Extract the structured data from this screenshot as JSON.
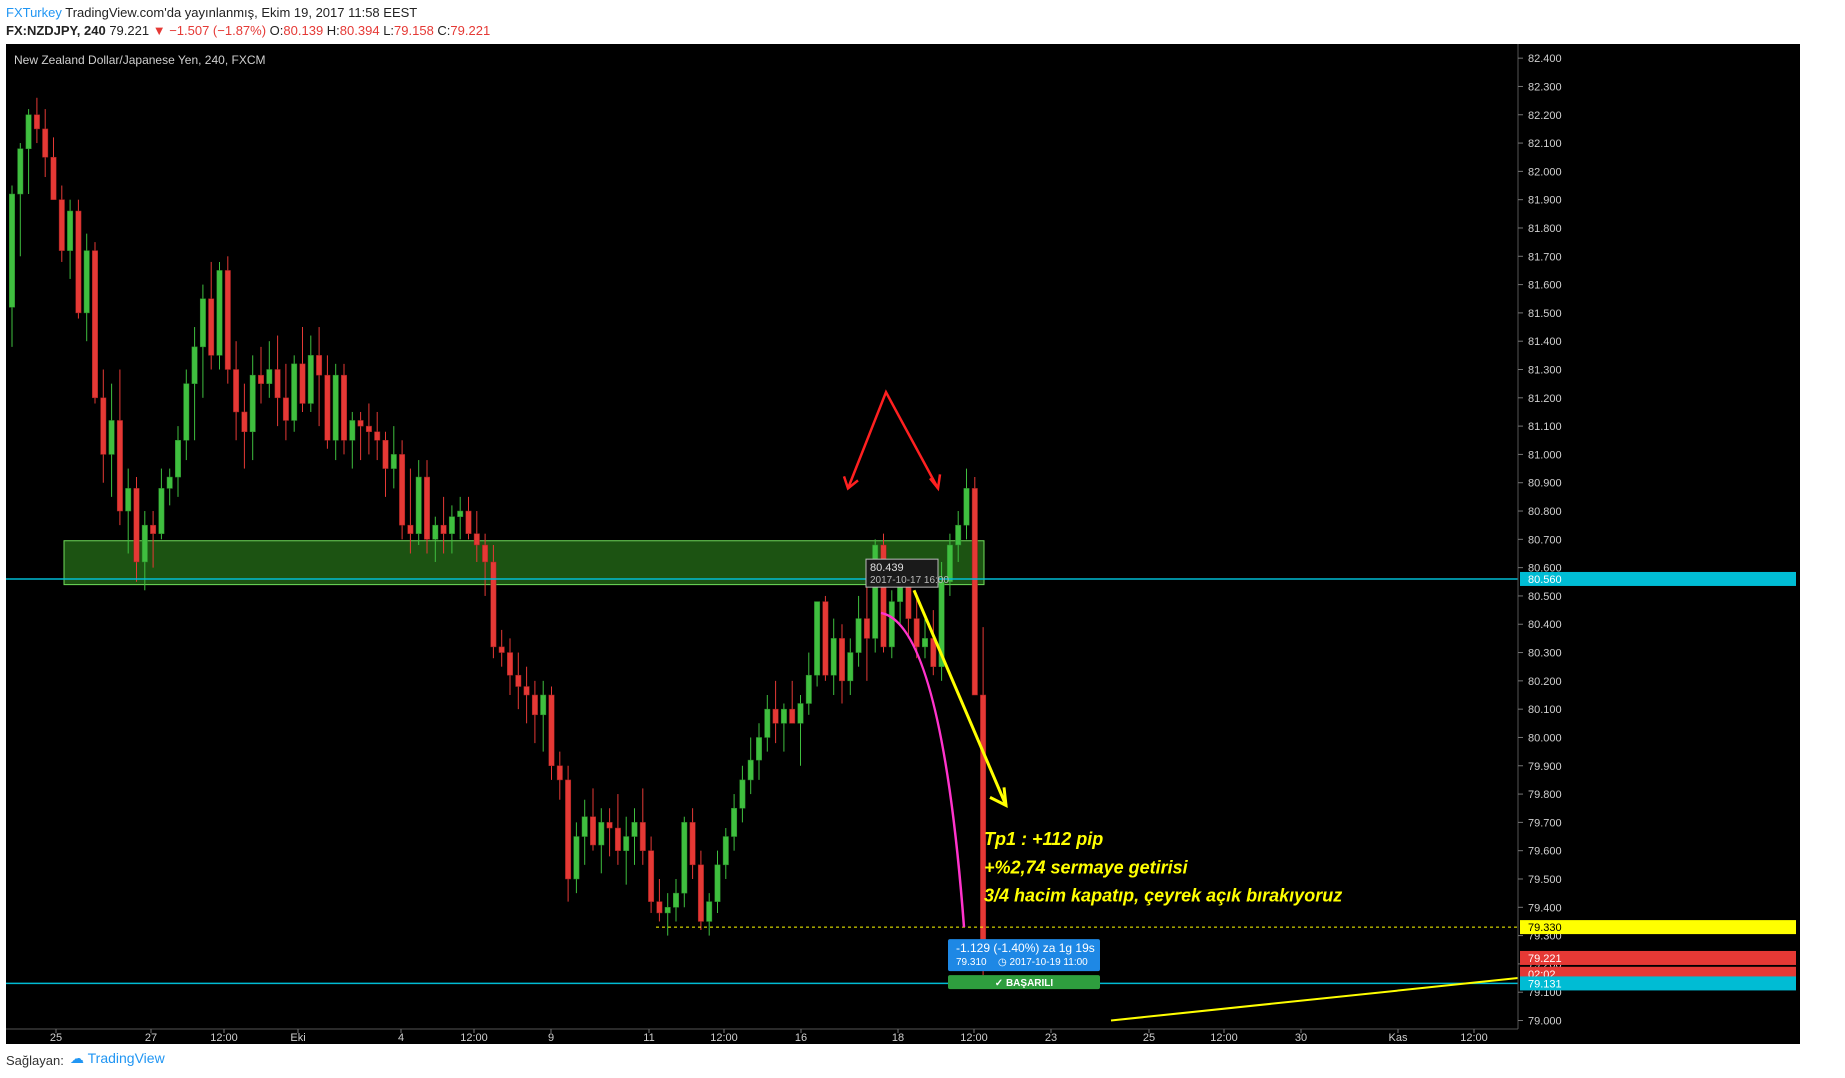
{
  "header": {
    "author": "FXTurkey",
    "published": "TradingView.com'da yayınlanmış, Ekim 19, 2017 11:58 EEST",
    "symbol": "FX:NZDJPY, 240",
    "last": "79.221",
    "change": "▼ −1.507 (−1.87%)",
    "o_label": "O:",
    "o_value": "80.139",
    "h_label": "H:",
    "h_value": "80.394",
    "l_label": "L:",
    "l_value": "79.158",
    "c_label": "C:",
    "c_value": "79.221"
  },
  "footer": {
    "source_label": "Sağlayan:",
    "provider": "TradingView"
  },
  "colors": {
    "background": "#000000",
    "up": "#3fbf3f",
    "down": "#e53935",
    "zone": "#2e8b1e",
    "level_line": "#00bcd4",
    "arrow_red": "#ff2020",
    "arrow_yellow": "#ffff00",
    "magenta": "#ff33cc",
    "target_box": "#1e88e5",
    "success": "#2e9e3e"
  },
  "chart_data": {
    "type": "candlestick",
    "title": "New Zealand Dollar/Japanese Yen, 240, FXCM",
    "ylim": [
      78.97,
      82.45
    ],
    "y_ticks": [
      "82.400",
      "82.300",
      "82.200",
      "82.100",
      "82.000",
      "81.900",
      "81.800",
      "81.700",
      "81.600",
      "81.500",
      "81.400",
      "81.300",
      "81.200",
      "81.100",
      "81.000",
      "80.900",
      "80.800",
      "80.700",
      "80.600",
      "80.500",
      "80.400",
      "80.300",
      "80.200",
      "80.100",
      "80.000",
      "79.900",
      "79.800",
      "79.700",
      "79.600",
      "79.500",
      "79.400",
      "79.300",
      "79.200",
      "79.100",
      "79.000"
    ],
    "x_ticks": [
      "25",
      "27",
      "12:00",
      "Eki",
      "4",
      "12:00",
      "9",
      "11",
      "12:00",
      "16",
      "18",
      "12:00",
      "23",
      "25",
      "12:00",
      "30",
      "Kas",
      "12:00"
    ],
    "price_labels": [
      {
        "text": "80.560",
        "value": 80.56,
        "color": "#00bcd4"
      },
      {
        "text": "79.330",
        "value": 79.33,
        "color": "#ffff00"
      },
      {
        "text": "79.221",
        "value": 79.221,
        "color": "#e53935"
      },
      {
        "text": "02:02",
        "value": 79.165,
        "color": "#e53935"
      },
      {
        "text": "79.131",
        "value": 79.131,
        "color": "#00bcd4"
      }
    ],
    "horizontal_levels": [
      80.56,
      79.131
    ],
    "zone": {
      "from": 80.54,
      "to": 80.695
    },
    "target_line": 79.33,
    "tooltip": {
      "price": "80.439",
      "date": "2017-10-17 16:00"
    },
    "target_box": {
      "line1": "-1.129 (-1.40%) za 1g 19s",
      "price": "79.310",
      "date": "2017-10-19  11:00"
    },
    "status": "BAŞARILI",
    "annotations": [
      "Tp1 : +112 pip",
      "+%2,74 sermaye getirisi",
      "3/4 hacim kapatıp, çeyrek açık bırakıyoruz"
    ],
    "candles": [
      [
        81.52,
        81.95,
        81.38,
        81.92
      ],
      [
        81.92,
        82.1,
        81.7,
        82.08
      ],
      [
        82.08,
        82.22,
        81.92,
        82.2
      ],
      [
        82.2,
        82.26,
        82.1,
        82.15
      ],
      [
        82.15,
        82.22,
        81.98,
        82.05
      ],
      [
        82.05,
        82.12,
        81.9,
        81.9
      ],
      [
        81.9,
        81.95,
        81.68,
        81.72
      ],
      [
        81.72,
        81.9,
        81.62,
        81.86
      ],
      [
        81.86,
        81.9,
        81.48,
        81.5
      ],
      [
        81.5,
        81.78,
        81.4,
        81.72
      ],
      [
        81.72,
        81.75,
        81.18,
        81.2
      ],
      [
        81.2,
        81.3,
        80.9,
        81.0
      ],
      [
        81.0,
        81.25,
        80.85,
        81.12
      ],
      [
        81.12,
        81.3,
        80.75,
        80.8
      ],
      [
        80.8,
        80.95,
        80.65,
        80.88
      ],
      [
        80.88,
        80.92,
        80.55,
        80.62
      ],
      [
        80.62,
        80.8,
        80.52,
        80.75
      ],
      [
        80.75,
        80.8,
        80.6,
        80.72
      ],
      [
        80.72,
        80.95,
        80.7,
        80.88
      ],
      [
        80.88,
        80.95,
        80.82,
        80.92
      ],
      [
        80.92,
        81.1,
        80.85,
        81.05
      ],
      [
        81.05,
        81.3,
        80.98,
        81.25
      ],
      [
        81.25,
        81.45,
        81.05,
        81.38
      ],
      [
        81.38,
        81.6,
        81.2,
        81.55
      ],
      [
        81.55,
        81.68,
        81.3,
        81.35
      ],
      [
        81.35,
        81.68,
        81.3,
        81.65
      ],
      [
        81.65,
        81.7,
        81.25,
        81.3
      ],
      [
        81.3,
        81.4,
        81.05,
        81.15
      ],
      [
        81.15,
        81.25,
        80.95,
        81.08
      ],
      [
        81.08,
        81.35,
        80.98,
        81.28
      ],
      [
        81.28,
        81.38,
        81.18,
        81.25
      ],
      [
        81.25,
        81.4,
        81.2,
        81.3
      ],
      [
        81.3,
        81.42,
        81.1,
        81.2
      ],
      [
        81.2,
        81.32,
        81.05,
        81.12
      ],
      [
        81.12,
        81.35,
        81.08,
        81.32
      ],
      [
        81.32,
        81.45,
        81.15,
        81.18
      ],
      [
        81.18,
        81.42,
        81.15,
        81.35
      ],
      [
        81.35,
        81.45,
        81.1,
        81.28
      ],
      [
        81.28,
        81.35,
        81.02,
        81.05
      ],
      [
        81.05,
        81.32,
        80.98,
        81.28
      ],
      [
        81.28,
        81.32,
        81.0,
        81.05
      ],
      [
        81.05,
        81.15,
        80.95,
        81.12
      ],
      [
        81.12,
        81.15,
        80.98,
        81.1
      ],
      [
        81.1,
        81.18,
        81.0,
        81.08
      ],
      [
        81.08,
        81.15,
        80.98,
        81.05
      ],
      [
        81.05,
        81.08,
        80.85,
        80.95
      ],
      [
        80.95,
        81.1,
        80.88,
        81.0
      ],
      [
        81.0,
        81.05,
        80.7,
        80.75
      ],
      [
        80.75,
        80.95,
        80.65,
        80.72
      ],
      [
        80.72,
        80.98,
        80.68,
        80.92
      ],
      [
        80.92,
        80.98,
        80.65,
        80.7
      ],
      [
        80.7,
        80.78,
        80.62,
        80.75
      ],
      [
        80.75,
        80.85,
        80.65,
        80.72
      ],
      [
        80.72,
        80.82,
        80.65,
        80.78
      ],
      [
        80.78,
        80.85,
        80.7,
        80.8
      ],
      [
        80.8,
        80.85,
        80.7,
        80.72
      ],
      [
        80.72,
        80.8,
        80.62,
        80.68
      ],
      [
        80.68,
        80.72,
        80.5,
        80.62
      ],
      [
        80.62,
        80.68,
        80.28,
        80.32
      ],
      [
        80.32,
        80.38,
        80.25,
        80.3
      ],
      [
        80.3,
        80.35,
        80.15,
        80.22
      ],
      [
        80.22,
        80.3,
        80.1,
        80.18
      ],
      [
        80.18,
        80.25,
        80.05,
        80.15
      ],
      [
        80.15,
        80.2,
        79.98,
        80.08
      ],
      [
        80.08,
        80.2,
        79.95,
        80.15
      ],
      [
        80.15,
        80.18,
        79.85,
        79.9
      ],
      [
        79.9,
        79.95,
        79.78,
        79.85
      ],
      [
        79.85,
        79.9,
        79.42,
        79.5
      ],
      [
        79.5,
        79.7,
        79.45,
        79.65
      ],
      [
        79.65,
        79.78,
        79.55,
        79.72
      ],
      [
        79.72,
        79.82,
        79.6,
        79.62
      ],
      [
        79.62,
        79.75,
        79.52,
        79.7
      ],
      [
        79.7,
        79.75,
        79.58,
        79.68
      ],
      [
        79.68,
        79.8,
        79.55,
        79.6
      ],
      [
        79.6,
        79.72,
        79.48,
        79.65
      ],
      [
        79.65,
        79.75,
        79.55,
        79.7
      ],
      [
        79.7,
        79.82,
        79.55,
        79.6
      ],
      [
        79.6,
        79.65,
        79.38,
        79.42
      ],
      [
        79.42,
        79.5,
        79.35,
        79.38
      ],
      [
        79.38,
        79.45,
        79.3,
        79.4
      ],
      [
        79.4,
        79.5,
        79.35,
        79.45
      ],
      [
        79.45,
        79.72,
        79.4,
        79.7
      ],
      [
        79.7,
        79.75,
        79.5,
        79.55
      ],
      [
        79.55,
        79.6,
        79.32,
        79.35
      ],
      [
        79.35,
        79.45,
        79.3,
        79.42
      ],
      [
        79.42,
        79.6,
        79.38,
        79.55
      ],
      [
        79.55,
        79.68,
        79.5,
        79.65
      ],
      [
        79.65,
        79.8,
        79.6,
        79.75
      ],
      [
        79.75,
        79.9,
        79.7,
        79.85
      ],
      [
        79.85,
        80.0,
        79.8,
        79.92
      ],
      [
        79.92,
        80.05,
        79.85,
        80.0
      ],
      [
        80.0,
        80.15,
        79.95,
        80.1
      ],
      [
        80.1,
        80.2,
        79.98,
        80.05
      ],
      [
        80.05,
        80.12,
        79.95,
        80.1
      ],
      [
        80.1,
        80.2,
        80.05,
        80.05
      ],
      [
        80.05,
        80.15,
        79.9,
        80.12
      ],
      [
        80.12,
        80.3,
        80.08,
        80.22
      ],
      [
        80.22,
        80.45,
        80.18,
        80.48
      ],
      [
        80.48,
        80.5,
        80.2,
        80.22
      ],
      [
        80.22,
        80.42,
        80.15,
        80.35
      ],
      [
        80.35,
        80.4,
        80.12,
        80.2
      ],
      [
        80.2,
        80.35,
        80.15,
        80.3
      ],
      [
        80.3,
        80.5,
        80.25,
        80.42
      ],
      [
        80.42,
        80.55,
        80.2,
        80.35
      ],
      [
        80.35,
        80.7,
        80.3,
        80.68
      ],
      [
        80.68,
        80.72,
        80.3,
        80.32
      ],
      [
        80.32,
        80.52,
        80.28,
        80.48
      ],
      [
        80.48,
        80.62,
        80.4,
        80.55
      ],
      [
        80.55,
        80.6,
        80.35,
        80.42
      ],
      [
        80.42,
        80.5,
        80.28,
        80.32
      ],
      [
        80.32,
        80.42,
        80.28,
        80.35
      ],
      [
        80.35,
        80.45,
        80.22,
        80.25
      ],
      [
        80.25,
        80.62,
        80.2,
        80.55
      ],
      [
        80.55,
        80.72,
        80.5,
        80.68
      ],
      [
        80.68,
        80.8,
        80.62,
        80.75
      ],
      [
        80.75,
        80.95,
        80.7,
        80.88
      ],
      [
        80.88,
        80.92,
        80.15,
        80.15
      ],
      [
        80.15,
        80.39,
        79.16,
        79.22
      ]
    ]
  }
}
